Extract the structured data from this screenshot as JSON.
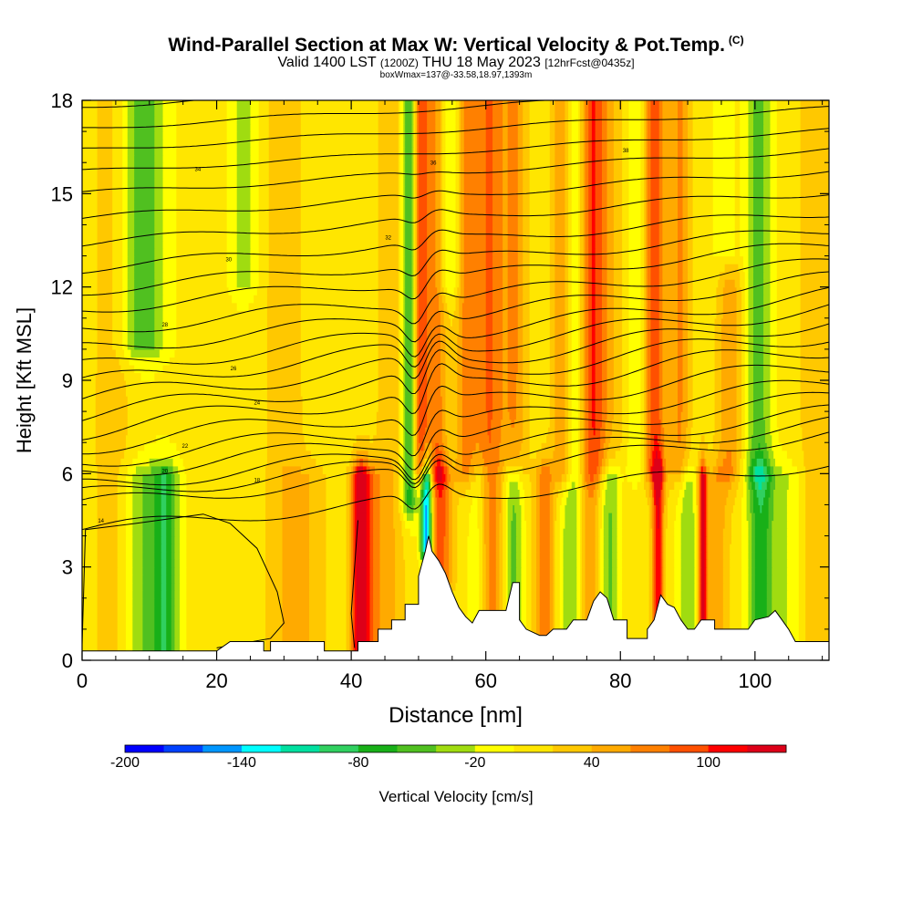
{
  "header": {
    "title": "Wind-Parallel Section at Max W: Vertical Velocity & Pot.Temp.",
    "copyright": "(C)",
    "valid_prefix": "Valid 1400 LST",
    "valid_utc": "(1200Z)",
    "valid_date": "THU 18 May 2023",
    "forecast": "[12hrFcst@0435z]",
    "boxwmax": "boxWmax=137@-33.58,18.97,1393m"
  },
  "chart_data": {
    "type": "heatmap",
    "title": "Wind-Parallel Section at Max W: Vertical Velocity & Pot.Temp.",
    "xlabel": "Distance [nm]",
    "ylabel": "Height [Kft MSL]",
    "xlim": [
      0,
      111
    ],
    "ylim": [
      0,
      18
    ],
    "x_ticks": [
      0,
      20,
      40,
      60,
      80,
      100
    ],
    "y_ticks": [
      0,
      3,
      6,
      9,
      12,
      15,
      18
    ],
    "colorbar": {
      "title": "Vertical Velocity [cm/s]",
      "tick_labels": [
        -200,
        -140,
        -80,
        -20,
        40,
        100
      ],
      "bins": [
        -200,
        -180,
        -160,
        -140,
        -120,
        -100,
        -80,
        -60,
        -40,
        -20,
        0,
        20,
        40,
        60,
        80,
        100,
        120,
        140
      ],
      "colors": [
        "#0000ff",
        "#0041ff",
        "#0096ff",
        "#00ffff",
        "#00e0a0",
        "#30d060",
        "#18b018",
        "#50c020",
        "#a0dc10",
        "#ffff00",
        "#ffe600",
        "#ffc800",
        "#ffaa00",
        "#ff8000",
        "#ff5000",
        "#ff0000",
        "#dd0018"
      ]
    },
    "theta_contour_labels": [
      {
        "x": 2.8,
        "y": 4.5,
        "label": "14"
      },
      {
        "x": 26,
        "y": 5.8,
        "label": "18"
      },
      {
        "x": 12.3,
        "y": 6.1,
        "label": "20"
      },
      {
        "x": 15.3,
        "y": 6.9,
        "label": "22"
      },
      {
        "x": 26,
        "y": 8.3,
        "label": "24"
      },
      {
        "x": 22.5,
        "y": 9.4,
        "label": "26"
      },
      {
        "x": 12.3,
        "y": 10.8,
        "label": "28"
      },
      {
        "x": 21.8,
        "y": 12.9,
        "label": "30"
      },
      {
        "x": 45.5,
        "y": 13.6,
        "label": "32"
      },
      {
        "x": 17.2,
        "y": 15.8,
        "label": "34"
      },
      {
        "x": 52.2,
        "y": 16,
        "label": "36"
      },
      {
        "x": 80.8,
        "y": 16.4,
        "label": "38"
      }
    ],
    "series": [
      {
        "name": "theta_contours_y0_kft",
        "values": [
          4.2,
          5.0,
          5.3,
          5.6,
          6.0,
          6.4,
          6.9,
          7.4,
          7.9,
          8.4,
          8.9,
          9.4,
          10.0,
          10.6,
          11.3,
          11.9,
          12.6,
          13.4,
          14.2,
          15.0,
          15.7,
          16.4,
          17.1,
          17.8
        ]
      }
    ],
    "terrain_profile_kft": [
      [
        0,
        0.3
      ],
      [
        20,
        0.3
      ],
      [
        22,
        0.6
      ],
      [
        27,
        0.6
      ],
      [
        27,
        0.3
      ],
      [
        28,
        0.3
      ],
      [
        28,
        0.6
      ],
      [
        36,
        0.6
      ],
      [
        36,
        0.3
      ],
      [
        41,
        0.3
      ],
      [
        41,
        0.6
      ],
      [
        44,
        0.6
      ],
      [
        44,
        1.0
      ],
      [
        46,
        1.0
      ],
      [
        46,
        1.3
      ],
      [
        48,
        1.3
      ],
      [
        48,
        1.8
      ],
      [
        50,
        1.8
      ],
      [
        50,
        2.7
      ],
      [
        51,
        3.5
      ],
      [
        51.5,
        4.0
      ],
      [
        52,
        3.5
      ],
      [
        53,
        3.2
      ],
      [
        54,
        2.8
      ],
      [
        55,
        2.2
      ],
      [
        56,
        1.7
      ],
      [
        57,
        1.4
      ],
      [
        58,
        1.2
      ],
      [
        59,
        1.6
      ],
      [
        63,
        1.6
      ],
      [
        64,
        2.5
      ],
      [
        65,
        2.5
      ],
      [
        65,
        1.3
      ],
      [
        66,
        1.0
      ],
      [
        68,
        0.8
      ],
      [
        69,
        0.8
      ],
      [
        70,
        1.0
      ],
      [
        72,
        1.0
      ],
      [
        73,
        1.3
      ],
      [
        75,
        1.3
      ],
      [
        76,
        1.9
      ],
      [
        77,
        2.2
      ],
      [
        78,
        2.0
      ],
      [
        79,
        1.3
      ],
      [
        81,
        1.3
      ],
      [
        81,
        0.7
      ],
      [
        84,
        0.7
      ],
      [
        84,
        1.0
      ],
      [
        85,
        1.3
      ],
      [
        86,
        2.1
      ],
      [
        87,
        1.8
      ],
      [
        88,
        1.7
      ],
      [
        89,
        1.3
      ],
      [
        90,
        1.0
      ],
      [
        91,
        1.0
      ],
      [
        92,
        1.3
      ],
      [
        94,
        1.3
      ],
      [
        94,
        1.0
      ],
      [
        96,
        1.0
      ],
      [
        99,
        1.0
      ],
      [
        100,
        1.3
      ],
      [
        102,
        1.4
      ],
      [
        103,
        1.6
      ],
      [
        104,
        1.3
      ],
      [
        105,
        1.0
      ],
      [
        106,
        0.6
      ],
      [
        111,
        0.6
      ]
    ]
  }
}
